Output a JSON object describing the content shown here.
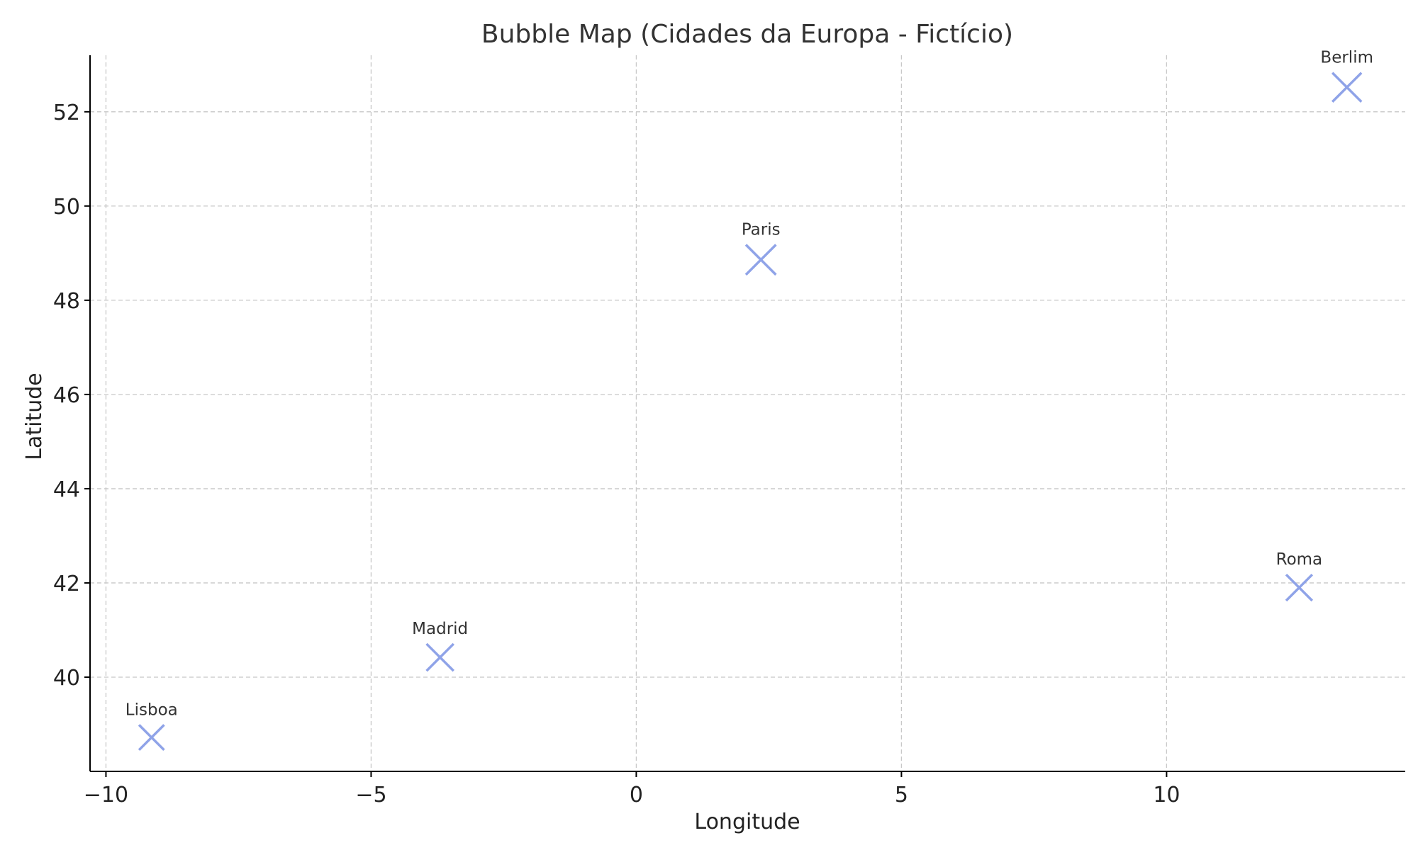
{
  "chart_data": {
    "type": "scatter",
    "title": "Bubble Map (Cidades da Europa - Fictício)",
    "xlabel": "Longitude",
    "ylabel": "Latitude",
    "xlim": [
      -10.3,
      14.5
    ],
    "ylim": [
      38.0,
      53.2
    ],
    "xticks": [
      -10,
      -5,
      0,
      5,
      10
    ],
    "xtick_labels": [
      "−10",
      "−5",
      "0",
      "5",
      "10"
    ],
    "yticks": [
      40,
      42,
      44,
      46,
      48,
      50,
      52
    ],
    "ytick_labels": [
      "40",
      "42",
      "44",
      "46",
      "48",
      "50",
      "52"
    ],
    "grid": true,
    "marker": "x",
    "color": "#8fa3e8",
    "points": [
      {
        "name": "Lisboa",
        "x": -9.14,
        "y": 38.72,
        "size": 0.55
      },
      {
        "name": "Madrid",
        "x": -3.7,
        "y": 40.42,
        "size": 0.65
      },
      {
        "name": "Paris",
        "x": 2.35,
        "y": 48.86,
        "size": 0.8
      },
      {
        "name": "Roma",
        "x": 12.5,
        "y": 41.9,
        "size": 0.6
      },
      {
        "name": "Berlim",
        "x": 13.4,
        "y": 52.52,
        "size": 0.75
      }
    ]
  }
}
